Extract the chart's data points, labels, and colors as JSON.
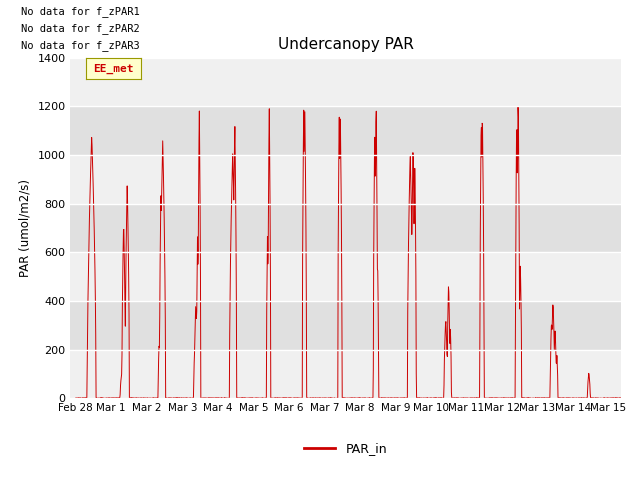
{
  "title": "Undercanopy PAR",
  "ylabel": "PAR (umol/m2/s)",
  "legend_label": "PAR_in",
  "line_color": "#cc0000",
  "bg_color": "#e8e8e8",
  "ylim": [
    0,
    1400
  ],
  "yticks": [
    0,
    200,
    400,
    600,
    800,
    1000,
    1200,
    1400
  ],
  "no_data_texts": [
    "No data for f_zPAR1",
    "No data for f_zPAR2",
    "No data for f_zPAR3"
  ],
  "ee_met_label": "EE_met",
  "xtick_labels": [
    "Feb 28",
    "Mar 1",
    "Mar 2",
    "Mar 3",
    "Mar 4",
    "Mar 5",
    "Mar 6",
    "Mar 7",
    "Mar 8",
    "Mar 9",
    "Mar 10",
    "Mar 11",
    "Mar 12",
    "Mar 13",
    "Mar 14",
    "Mar 15"
  ],
  "xtick_positions": [
    0,
    1,
    2,
    3,
    4,
    5,
    6,
    7,
    8,
    9,
    10,
    11,
    12,
    13,
    14,
    15
  ],
  "grid_color": "#d0d0d0",
  "grid_bg_light": "#f0f0f0",
  "grid_bg_dark": "#e0e0e0"
}
